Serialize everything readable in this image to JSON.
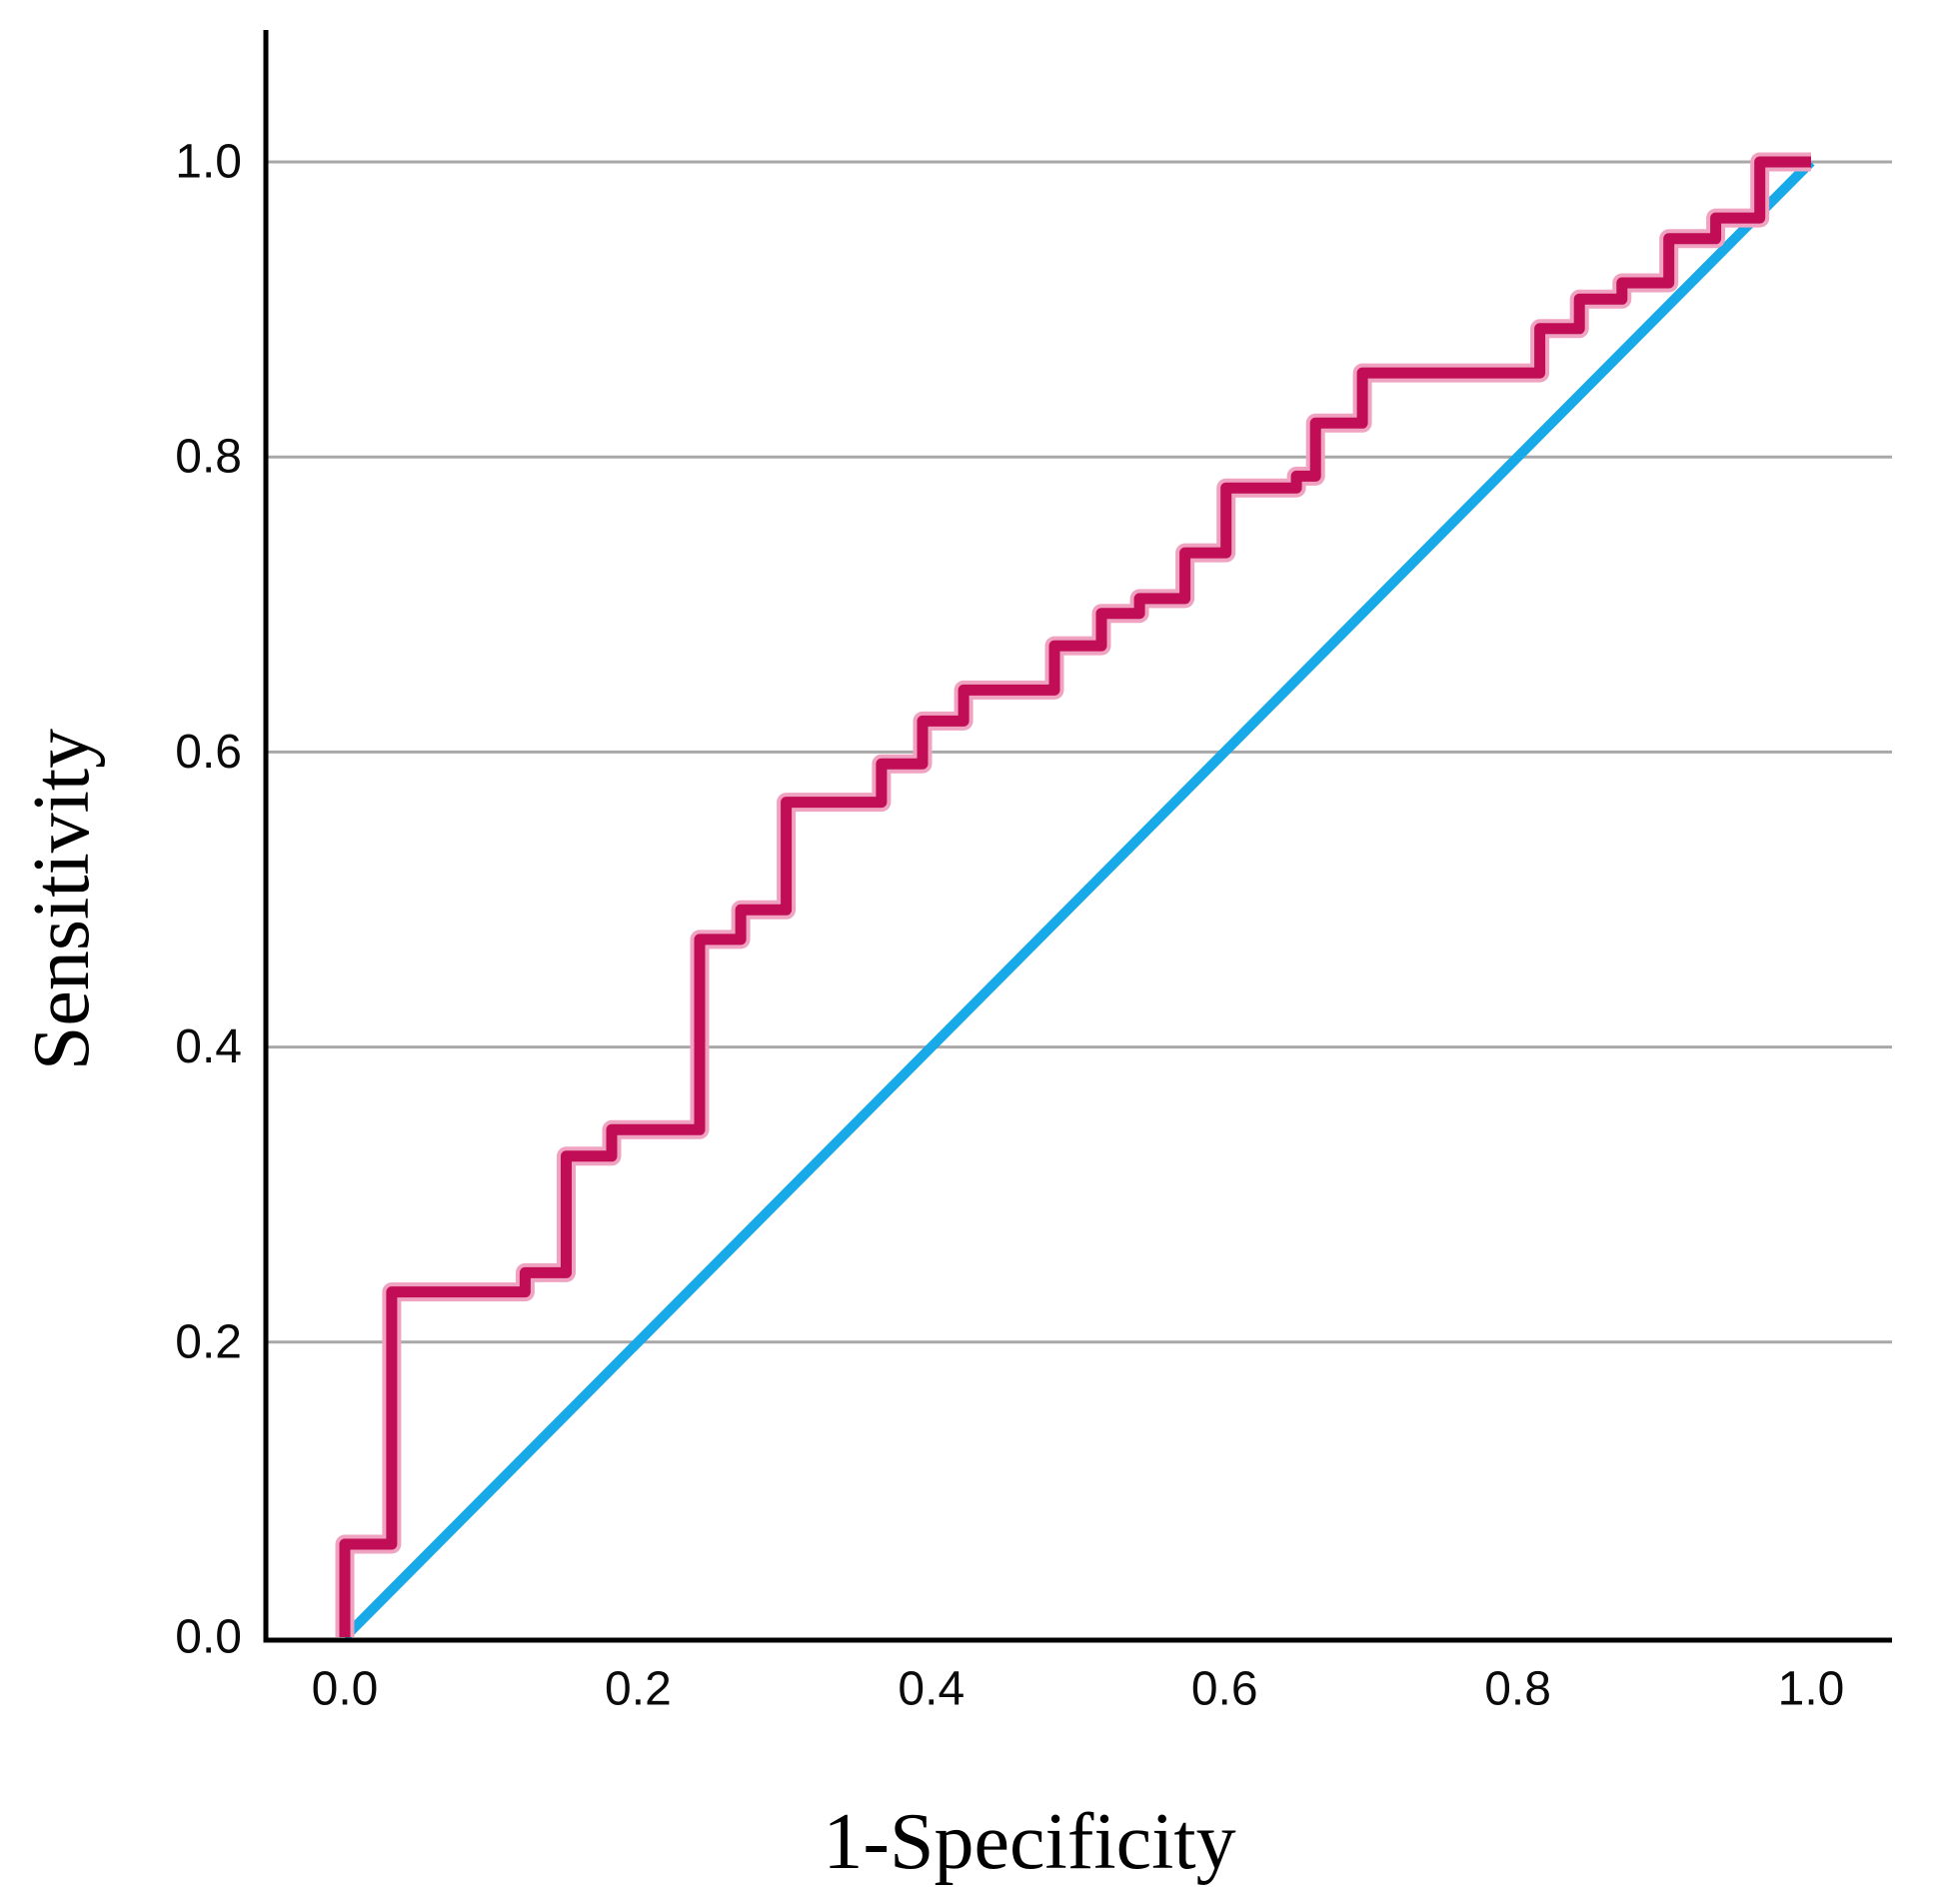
{
  "figure": {
    "background": "#ffffff"
  },
  "chart_data": {
    "type": "line",
    "subtype": "roc-curve",
    "title": "",
    "xlabel": "1-Specificity",
    "ylabel": "Sensitivity",
    "xlim": [
      0,
      1
    ],
    "ylim": [
      0,
      1
    ],
    "x_ticks": [
      0.0,
      0.2,
      0.4,
      0.6,
      0.8,
      1.0
    ],
    "x_tick_labels": [
      "0.0",
      "0.2",
      "0.4",
      "0.6",
      "0.8",
      "1.0"
    ],
    "y_ticks": [
      0.0,
      0.2,
      0.4,
      0.6,
      0.8,
      1.0
    ],
    "y_tick_labels": [
      "0.0",
      "0.2",
      "0.4",
      "0.6",
      "0.8",
      "1.0"
    ],
    "grid": {
      "horizontal": true,
      "vertical": false,
      "color": "#a8a8a8"
    },
    "legend": "none",
    "axis_color": "#000000",
    "series": [
      {
        "name": "ROC curve",
        "style": "step",
        "color": "#c00d55",
        "halo_color": "#f0a3c0",
        "points": [
          [
            0.0,
            0.0
          ],
          [
            0.0,
            0.063
          ],
          [
            0.032,
            0.063
          ],
          [
            0.032,
            0.234
          ],
          [
            0.123,
            0.234
          ],
          [
            0.123,
            0.247
          ],
          [
            0.151,
            0.247
          ],
          [
            0.151,
            0.326
          ],
          [
            0.182,
            0.326
          ],
          [
            0.182,
            0.344
          ],
          [
            0.242,
            0.344
          ],
          [
            0.242,
            0.473
          ],
          [
            0.27,
            0.473
          ],
          [
            0.27,
            0.493
          ],
          [
            0.301,
            0.493
          ],
          [
            0.301,
            0.566
          ],
          [
            0.366,
            0.566
          ],
          [
            0.366,
            0.592
          ],
          [
            0.394,
            0.592
          ],
          [
            0.394,
            0.621
          ],
          [
            0.422,
            0.621
          ],
          [
            0.422,
            0.642
          ],
          [
            0.484,
            0.642
          ],
          [
            0.484,
            0.672
          ],
          [
            0.516,
            0.672
          ],
          [
            0.516,
            0.694
          ],
          [
            0.542,
            0.694
          ],
          [
            0.542,
            0.704
          ],
          [
            0.573,
            0.704
          ],
          [
            0.573,
            0.735
          ],
          [
            0.601,
            0.735
          ],
          [
            0.601,
            0.779
          ],
          [
            0.649,
            0.779
          ],
          [
            0.649,
            0.787
          ],
          [
            0.662,
            0.787
          ],
          [
            0.662,
            0.823
          ],
          [
            0.694,
            0.823
          ],
          [
            0.694,
            0.857
          ],
          [
            0.815,
            0.857
          ],
          [
            0.815,
            0.887
          ],
          [
            0.842,
            0.887
          ],
          [
            0.842,
            0.907
          ],
          [
            0.871,
            0.907
          ],
          [
            0.871,
            0.918
          ],
          [
            0.903,
            0.918
          ],
          [
            0.903,
            0.948
          ],
          [
            0.935,
            0.948
          ],
          [
            0.935,
            0.962
          ],
          [
            0.965,
            0.962
          ],
          [
            0.965,
            1.0
          ],
          [
            1.0,
            1.0
          ]
        ]
      },
      {
        "name": "Reference diagonal",
        "style": "straight",
        "color": "#18a9e8",
        "points": [
          [
            0,
            0
          ],
          [
            1,
            1
          ]
        ]
      }
    ]
  }
}
